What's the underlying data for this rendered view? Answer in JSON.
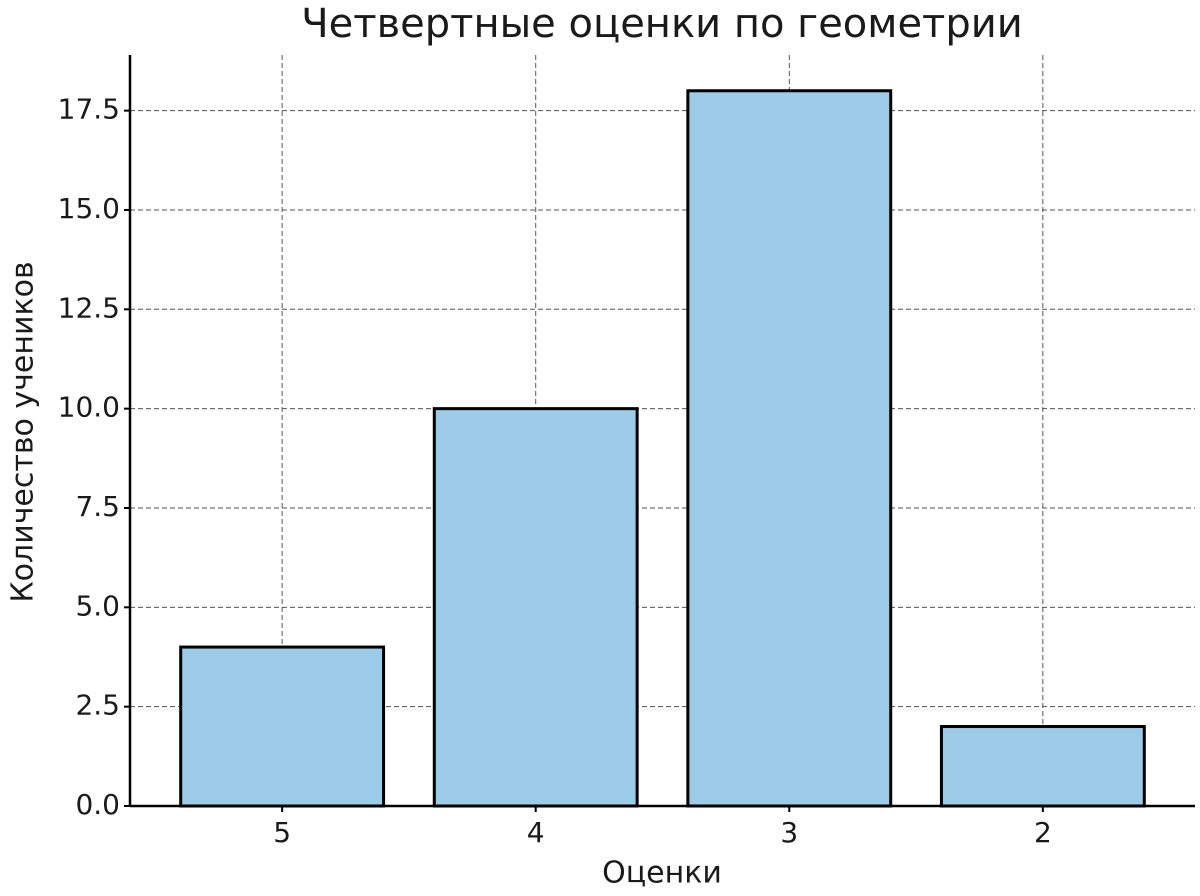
{
  "chart_data": {
    "type": "bar",
    "title": "Четвертные оценки по геометрии",
    "x_label": "Оценки",
    "y_label": "Количество учеников",
    "categories": [
      "5",
      "4",
      "3",
      "2"
    ],
    "values": [
      4,
      10,
      18,
      2
    ],
    "color": "#9ccbe8",
    "ylim": [
      0,
      18.9
    ],
    "yticks": [
      {
        "value": 0,
        "label": "0.0"
      },
      {
        "value": 2.5,
        "label": "2.5"
      },
      {
        "value": 5,
        "label": "5.0"
      },
      {
        "value": 7.5,
        "label": "7.5"
      },
      {
        "value": 10,
        "label": "10.0"
      },
      {
        "value": 12.5,
        "label": "12.5"
      },
      {
        "value": 15,
        "label": "15.0"
      },
      {
        "value": 17.5,
        "label": "17.5"
      }
    ],
    "grid": true
  }
}
